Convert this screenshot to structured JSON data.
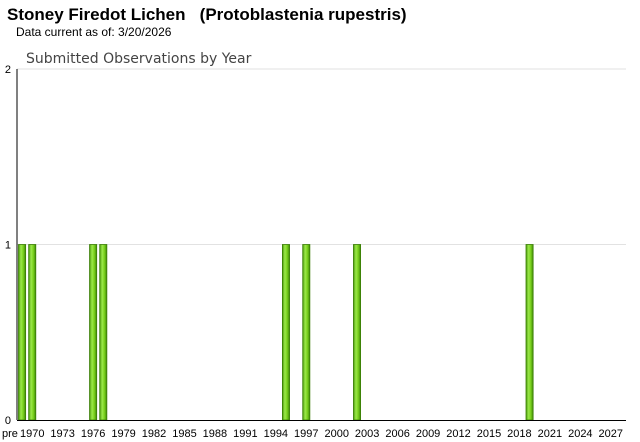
{
  "header": {
    "title": "Stoney Firedot Lichen   (Protoblastenia rupestris)",
    "subtitle": "Data current as of: 3/20/2026"
  },
  "chart_data": {
    "type": "bar",
    "title": "Submitted Observations by Year",
    "xlabel": "",
    "ylabel": "",
    "ylim": [
      0,
      2
    ],
    "y_ticks": [
      0,
      1,
      2
    ],
    "x_tick_labels": [
      "pre",
      "1970",
      "1973",
      "1976",
      "1979",
      "1982",
      "1985",
      "1988",
      "1991",
      "1994",
      "1997",
      "2000",
      "2003",
      "2006",
      "2009",
      "2012",
      "2015",
      "2018",
      "2021",
      "2024",
      "2027"
    ],
    "categories": [
      "pre",
      1970,
      1976,
      1977,
      1995,
      1997,
      2002,
      2019
    ],
    "values": [
      1,
      1,
      1,
      1,
      1,
      1,
      1,
      1
    ],
    "grid": true,
    "bar_color": "#7bd21e"
  }
}
